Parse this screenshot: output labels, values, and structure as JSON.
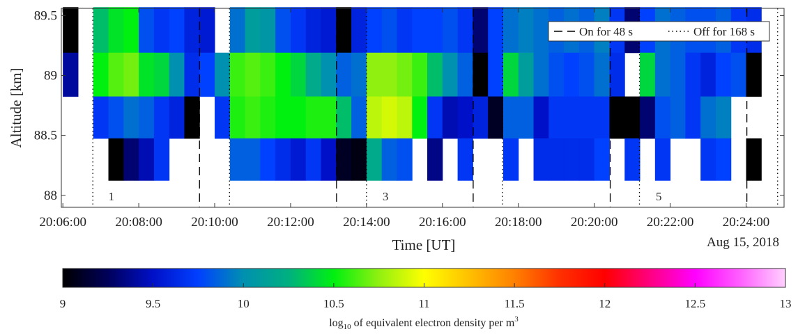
{
  "chart_data": {
    "type": "heatmap",
    "xlabel": "Time [UT]",
    "ylabel": "Altitude [km]",
    "date_label": "Aug 15, 2018",
    "xlim": [
      5.96,
      25
    ],
    "ylim": [
      87.9,
      89.56
    ],
    "xticks": [
      {
        "value": 6,
        "label": "20:06:00"
      },
      {
        "value": 8,
        "label": "20:08:00"
      },
      {
        "value": 10,
        "label": "20:10:00"
      },
      {
        "value": 12,
        "label": "20:12:00"
      },
      {
        "value": 14,
        "label": "20:14:00"
      },
      {
        "value": 16,
        "label": "20:16:00"
      },
      {
        "value": 18,
        "label": "20:18:00"
      },
      {
        "value": 20,
        "label": "20:20:00"
      },
      {
        "value": 22,
        "label": "20:22:00"
      },
      {
        "value": 24,
        "label": "20:24:00"
      }
    ],
    "yticks": [
      88,
      88.5,
      89,
      89.5
    ],
    "x": [
      6.2,
      6.6,
      7.0,
      7.4,
      7.8,
      8.2,
      8.6,
      9.0,
      9.4,
      9.8,
      10.2,
      10.6,
      11.0,
      11.4,
      11.8,
      12.2,
      12.6,
      13.0,
      13.4,
      13.8,
      14.2,
      14.6,
      15.0,
      15.4,
      15.8,
      16.2,
      16.6,
      17.0,
      17.4,
      17.8,
      18.2,
      18.6,
      19.0,
      19.4,
      19.8,
      20.2,
      20.6,
      21.0,
      21.4,
      21.8,
      22.2,
      22.6,
      23.0,
      23.4,
      23.8,
      24.2
    ],
    "y": [
      89.38,
      89.0,
      88.65,
      88.3
    ],
    "z": [
      [
        9,
        null,
        10.3,
        10.45,
        10.5,
        9.8,
        9.7,
        9.75,
        9.6,
        9.55,
        null,
        9.9,
        10.1,
        10.05,
        9.8,
        9.7,
        9.6,
        9.55,
        9.0,
        9.6,
        9.75,
        9.8,
        9.7,
        9.75,
        9.75,
        9.8,
        9.7,
        9.3,
        9.75,
        9.9,
        9.95,
        9.9,
        9.85,
        9.9,
        9.85,
        9.95,
        9.7,
        9.3,
        9.75,
        9.9,
        9.85,
        9.8,
        9.8,
        9.85,
        9.7,
        9.65
      ],
      [
        9.4,
        null,
        10.5,
        10.65,
        10.7,
        10.45,
        10.4,
        10.0,
        9.65,
        9.75,
        10.0,
        10.6,
        10.65,
        10.6,
        10.5,
        10.4,
        10.2,
        10.0,
        9.85,
        9.9,
        10.75,
        10.75,
        10.7,
        10.6,
        10.3,
        10.0,
        9.85,
        9.0,
        9.75,
        10.4,
        10.1,
        9.9,
        9.8,
        9.75,
        9.8,
        9.9,
        9.65,
        null,
        10.4,
        9.9,
        9.85,
        9.7,
        9.6,
        9.75,
        9.8,
        9.0
      ],
      [
        null,
        null,
        9.7,
        9.8,
        9.9,
        9.85,
        9.7,
        9.6,
        9.0,
        null,
        9.7,
        10.55,
        10.6,
        10.55,
        10.5,
        10.5,
        10.55,
        10.55,
        10.3,
        9.85,
        10.85,
        10.9,
        10.85,
        10.5,
        9.7,
        9.45,
        9.5,
        9.6,
        9.1,
        9.85,
        9.85,
        9.5,
        9.7,
        9.7,
        9.7,
        9.7,
        9.0,
        9.0,
        9.3,
        9.8,
        9.85,
        9.7,
        9.9,
        9.95,
        null,
        null
      ],
      [
        null,
        null,
        null,
        9.0,
        9.3,
        9.45,
        9.7,
        null,
        null,
        null,
        null,
        9.85,
        9.85,
        9.75,
        9.65,
        9.55,
        9.7,
        9.5,
        9.1,
        9.05,
        10.2,
        9.85,
        9.8,
        null,
        9.35,
        null,
        9.7,
        null,
        null,
        9.7,
        null,
        9.65,
        9.65,
        9.65,
        9.65,
        9.75,
        null,
        9.7,
        null,
        9.7,
        null,
        null,
        9.7,
        9.75,
        null,
        9.0
      ]
    ],
    "on_lines": [
      9.6,
      13.21,
      16.81,
      20.42,
      24.02
    ],
    "off_lines": [
      6.79,
      10.39,
      14.0,
      17.58,
      21.19,
      24.83
    ],
    "legend": {
      "on": "On for 48 s",
      "off": "Off for 168 s",
      "location": "upper right"
    },
    "annotations": [
      {
        "text": "1",
        "x": 7.28
      },
      {
        "text": "3",
        "x": 14.5
      },
      {
        "text": "5",
        "x": 21.7
      }
    ],
    "colormap": [
      "#000000",
      "#00005a",
      "#0010c8",
      "#0040ff",
      "#0090b0",
      "#00b080",
      "#00f010",
      "#90f010",
      "#ffff00",
      "#ffc000",
      "#ff8000",
      "#ff3000",
      "#ff0000",
      "#ff0080",
      "#ff00ff",
      "#ff60ff",
      "#ffd0ff"
    ],
    "clim": [
      9,
      13
    ],
    "cticks": [
      9,
      9.5,
      10,
      10.5,
      11,
      11.5,
      12,
      12.5,
      13
    ],
    "clabel": [
      "log",
      "10",
      " of equivalent electron density per m",
      "3"
    ]
  }
}
